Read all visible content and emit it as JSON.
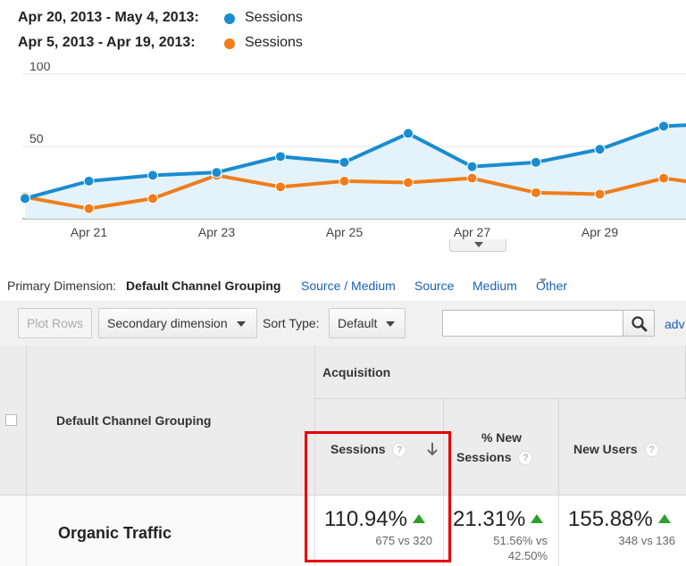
{
  "legend": [
    {
      "range": "Apr 20, 2013 - May 4, 2013:",
      "metric": "Sessions",
      "color": "#1a8ccf"
    },
    {
      "range": "Apr 5, 2013 - Apr 19, 2013:",
      "metric": "Sessions",
      "color": "#f07d1a"
    }
  ],
  "chart_data": {
    "type": "line",
    "x": [
      "Apr 20",
      "Apr 21",
      "Apr 22",
      "Apr 23",
      "Apr 24",
      "Apr 25",
      "Apr 26",
      "Apr 27",
      "Apr 28",
      "Apr 29",
      "Apr 30",
      "May 1"
    ],
    "series": [
      {
        "name": "Sessions",
        "color": "#1a8ccf",
        "values": [
          14,
          26,
          30,
          32,
          43,
          39,
          59,
          36,
          39,
          48,
          64,
          66
        ]
      },
      {
        "name": "Sessions",
        "color": "#f07d1a",
        "values": [
          15,
          7,
          14,
          30,
          22,
          26,
          25,
          28,
          18,
          17,
          28,
          22
        ]
      }
    ],
    "yticks": [
      "100",
      "50"
    ],
    "xticks": [
      "Apr 21",
      "Apr 23",
      "Apr 25",
      "Apr 27",
      "Apr 29"
    ],
    "ylim": [
      0,
      100
    ],
    "area_fill": "#e3f2fb"
  },
  "primary_dimension": {
    "label": "Primary Dimension:",
    "current": "Default Channel Grouping",
    "links": [
      "Source / Medium",
      "Source",
      "Medium",
      "Other"
    ]
  },
  "toolbar": {
    "plot_rows": "Plot Rows",
    "secondary_dimension": "Secondary dimension",
    "sort_type_label": "Sort Type:",
    "sort_type_value": "Default",
    "search_value": "",
    "advanced": "adv"
  },
  "table": {
    "dimension_header": "Default Channel Grouping",
    "group_header": "Acquisition",
    "columns": [
      {
        "label": "Sessions",
        "help": "?"
      },
      {
        "label_line1": "% New",
        "label_line2": "Sessions",
        "help": "?"
      },
      {
        "label": "New Users",
        "help": "?"
      }
    ],
    "row": {
      "name": "Organic Traffic",
      "sessions": {
        "change": "110.94%",
        "detail": "675 vs 320"
      },
      "pct_new": {
        "change": "21.31%",
        "detail_line1": "51.56% vs",
        "detail_line2": "42.50%"
      },
      "new_users": {
        "change": "155.88%",
        "detail": "348 vs 136"
      }
    }
  }
}
